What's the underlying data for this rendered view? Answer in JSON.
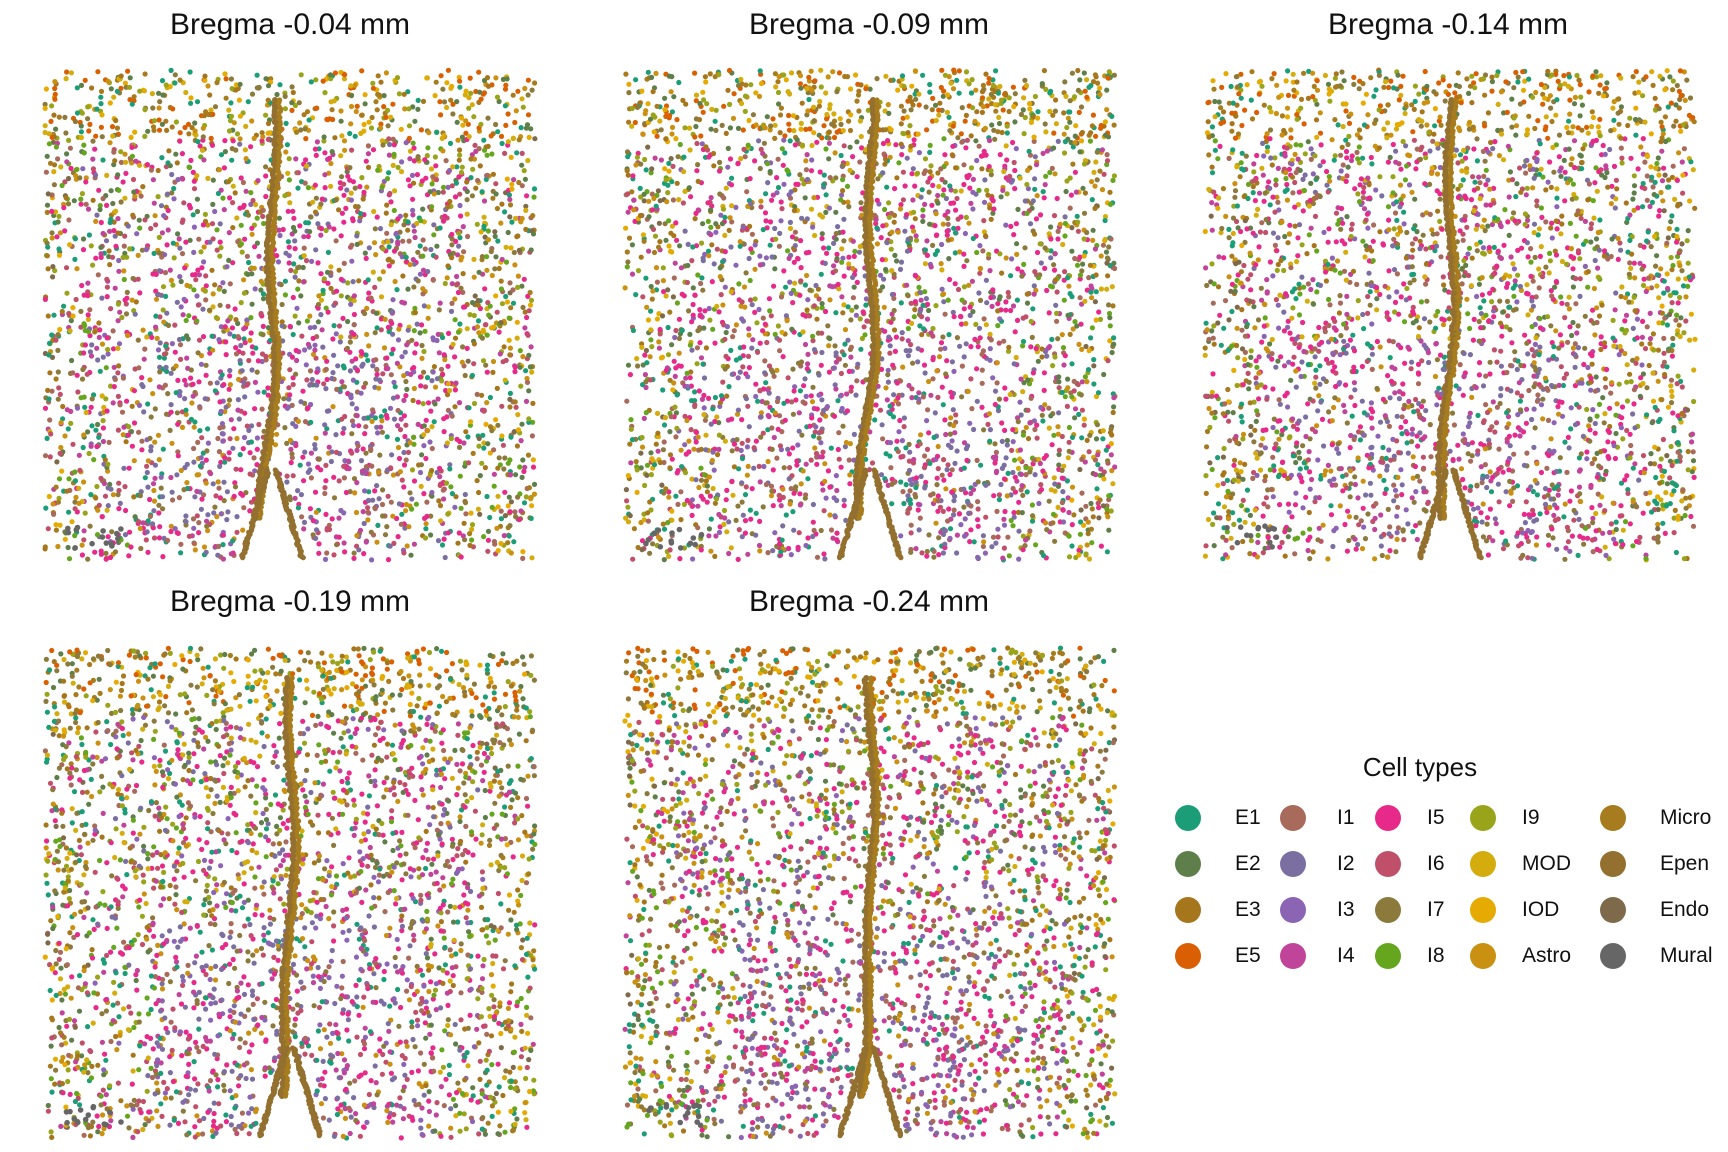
{
  "chart_data": {
    "type": "scatter",
    "panels": [
      {
        "title": "Bregma -0.04 mm"
      },
      {
        "title": "Bregma -0.09 mm"
      },
      {
        "title": "Bregma -0.14 mm"
      },
      {
        "title": "Bregma -0.19 mm"
      },
      {
        "title": "Bregma -0.24 mm"
      }
    ],
    "legend": {
      "title": "Cell types",
      "columns": [
        [
          {
            "label": "E1",
            "color": "#1b9e77"
          },
          {
            "label": "E2",
            "color": "#5f7f4a"
          },
          {
            "label": "E3",
            "color": "#a6761d"
          },
          {
            "label": "E5",
            "color": "#d95f02"
          }
        ],
        [
          {
            "label": "I1",
            "color": "#a86a5a"
          },
          {
            "label": "I2",
            "color": "#7b6fa2"
          },
          {
            "label": "I3",
            "color": "#8c64b4"
          },
          {
            "label": "I4",
            "color": "#c0449a"
          }
        ],
        [
          {
            "label": "I5",
            "color": "#e7298a"
          },
          {
            "label": "I6",
            "color": "#c0506a"
          },
          {
            "label": "I7",
            "color": "#8c7a3c"
          },
          {
            "label": "I8",
            "color": "#66a61e"
          }
        ],
        [
          {
            "label": "I9",
            "color": "#99a41a"
          },
          {
            "label": "MOD",
            "color": "#d4ac0d"
          },
          {
            "label": "IOD",
            "color": "#e6ab02"
          },
          {
            "label": "Astro",
            "color": "#c99012"
          }
        ],
        [
          {
            "label": "Micro",
            "color": "#a67c1e"
          },
          {
            "label": "Epen",
            "color": "#93702f"
          },
          {
            "label": "Endo",
            "color": "#7e6a4a"
          },
          {
            "label": "Mural",
            "color": "#666666"
          }
        ]
      ]
    },
    "axes": {
      "visible": false,
      "grid": false
    },
    "legend_placement": "right"
  }
}
